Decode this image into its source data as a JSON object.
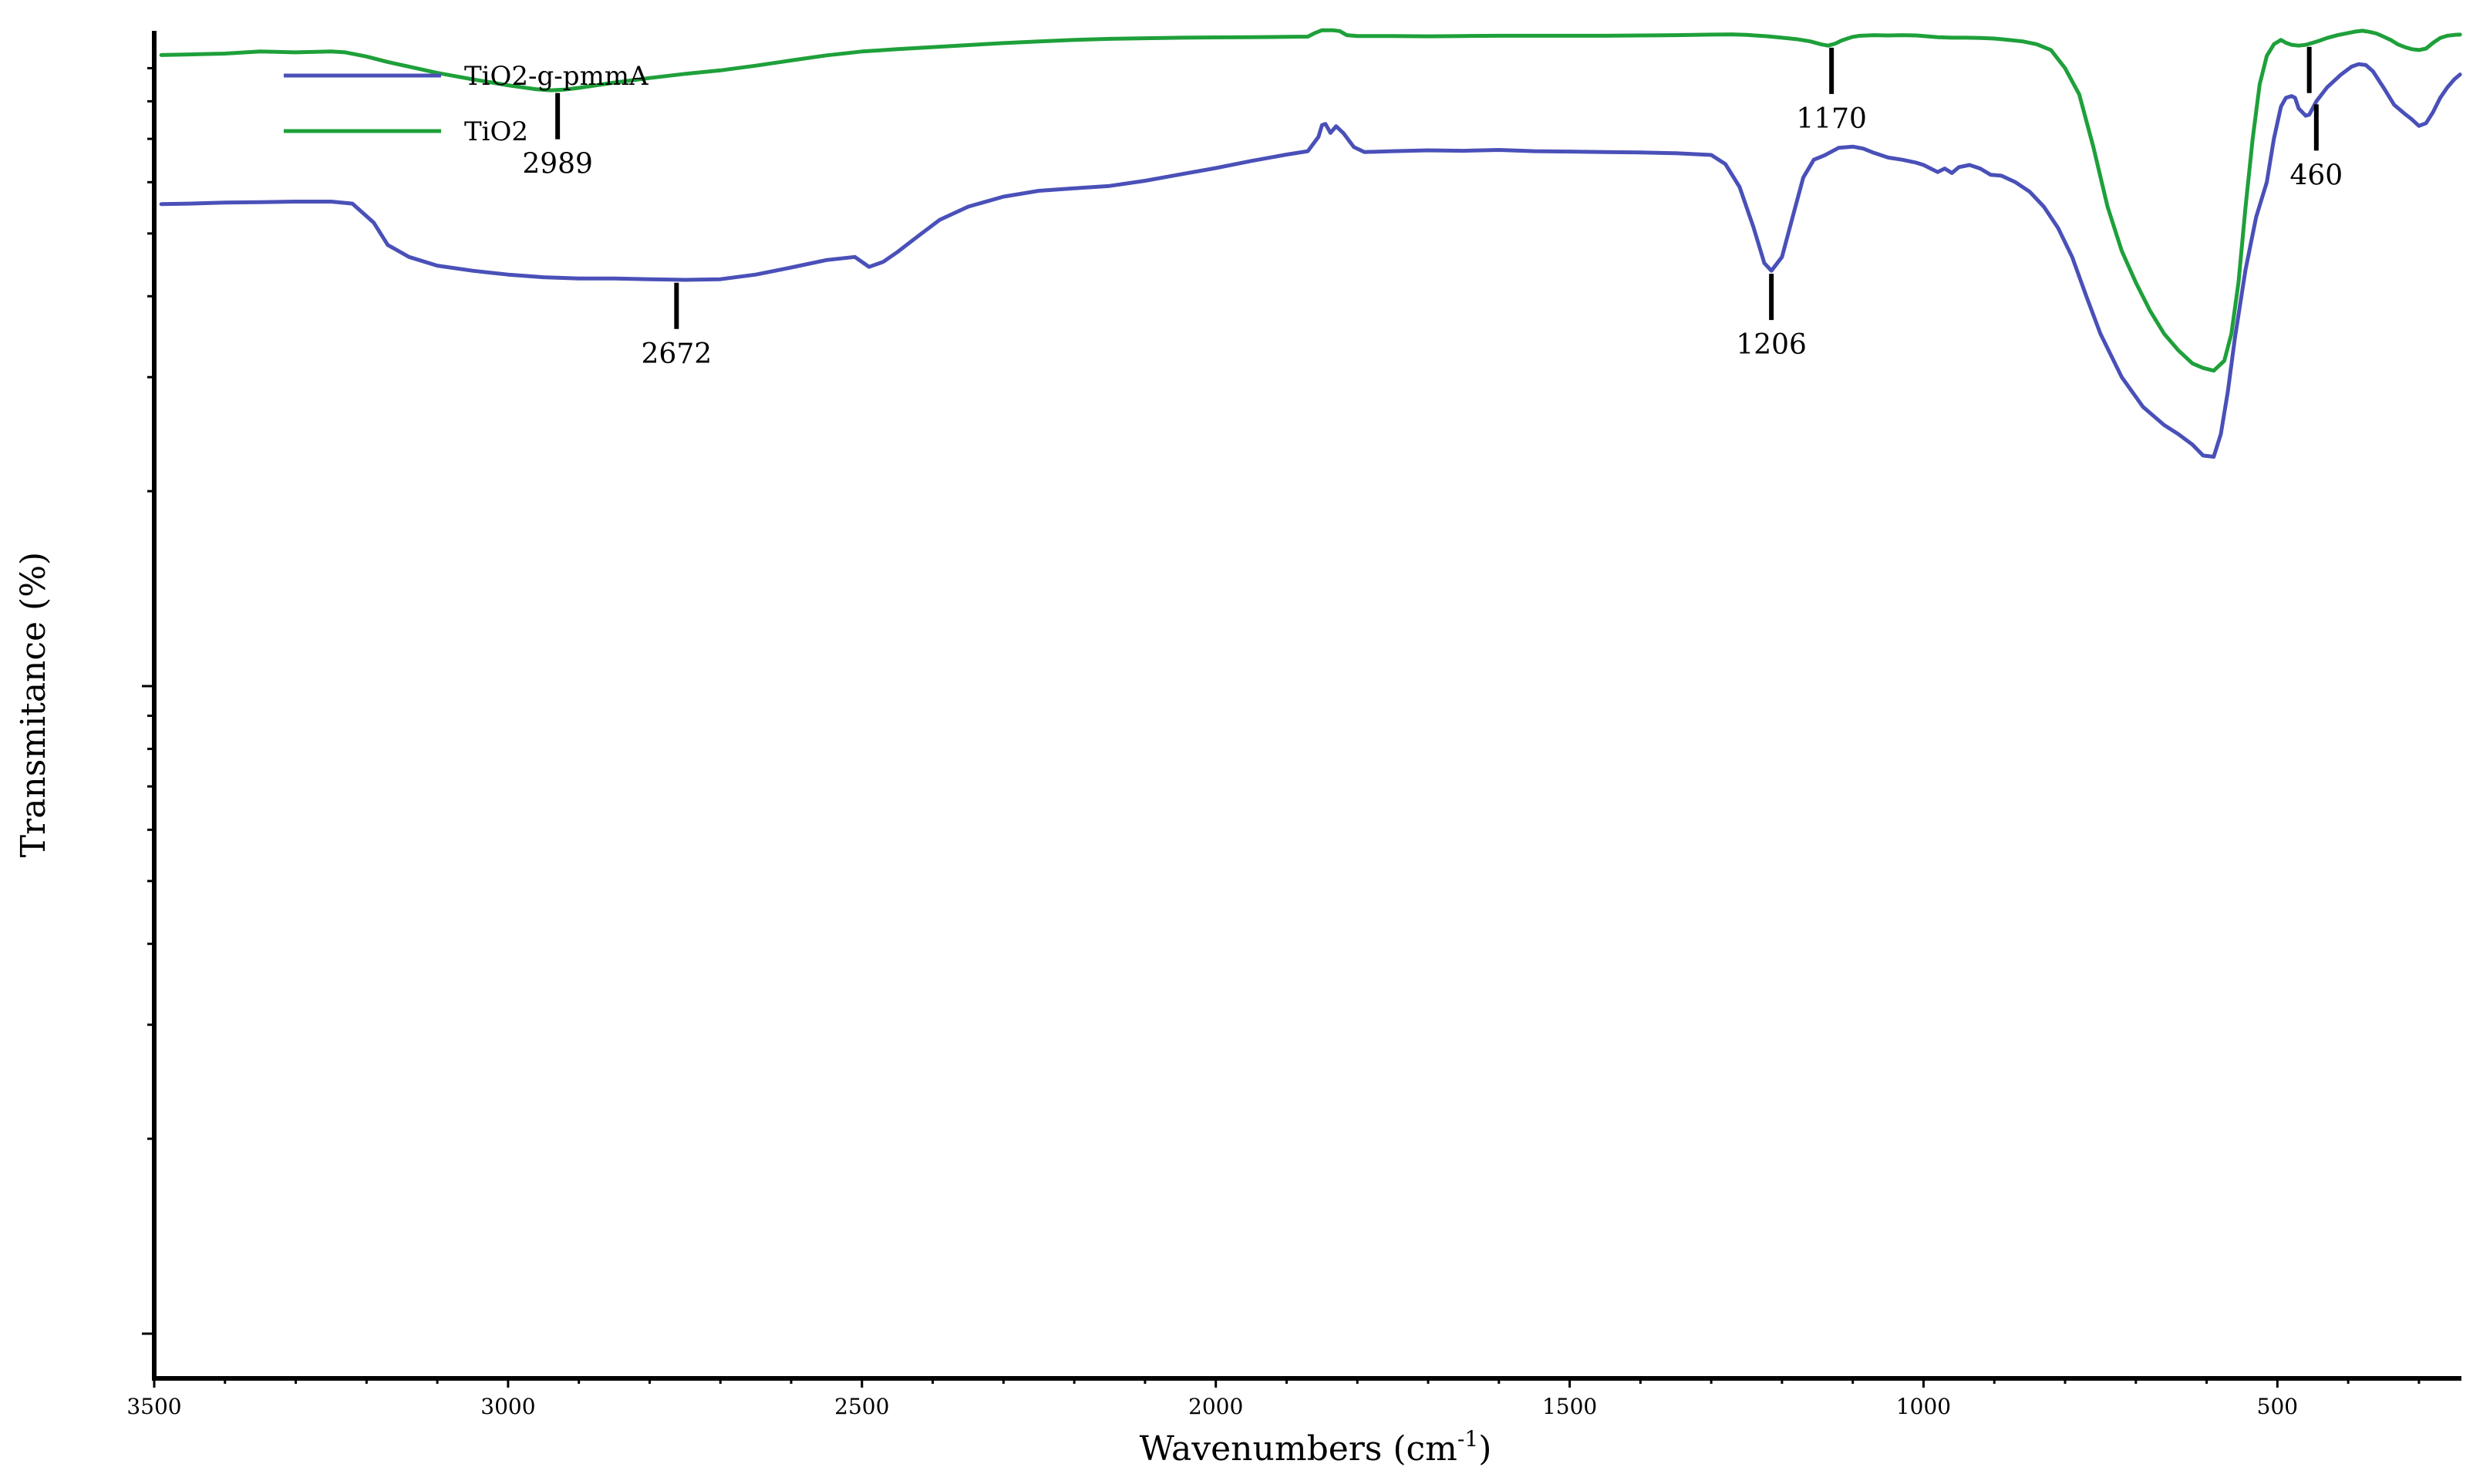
{
  "chart_data": {
    "type": "line",
    "xlabel_text": "Wavenumbers (cm",
    "xlabel_sup": "-1",
    "xlabel_close": ")",
    "ylabel": "Transmitance (%)",
    "xlim": [
      3500,
      240
    ],
    "x_reversed": true,
    "x_ticks": [
      3500,
      3000,
      2500,
      2000,
      1500,
      1000,
      500
    ],
    "x_tick_labels": [
      "3500",
      "3000",
      "2500",
      "2000",
      "1500",
      "1000",
      "500"
    ],
    "y_scale": "log",
    "ylim": [
      1,
      100
    ],
    "y_tick_labels_shown": false,
    "grid": false,
    "legend_position": "top-left",
    "series": [
      {
        "name": "TiO2-g-pmmA",
        "color": "#4a50b8",
        "points": [
          [
            3490,
            55.5
          ],
          [
            3450,
            55.6
          ],
          [
            3400,
            55.8
          ],
          [
            3350,
            55.9
          ],
          [
            3300,
            56.0
          ],
          [
            3250,
            56.0
          ],
          [
            3220,
            55.6
          ],
          [
            3190,
            52.0
          ],
          [
            3170,
            48.0
          ],
          [
            3140,
            46.0
          ],
          [
            3100,
            44.6
          ],
          [
            3050,
            43.8
          ],
          [
            3000,
            43.2
          ],
          [
            2950,
            42.8
          ],
          [
            2900,
            42.6
          ],
          [
            2850,
            42.6
          ],
          [
            2800,
            42.5
          ],
          [
            2750,
            42.4
          ],
          [
            2700,
            42.5
          ],
          [
            2650,
            43.2
          ],
          [
            2600,
            44.3
          ],
          [
            2550,
            45.5
          ],
          [
            2510,
            46.0
          ],
          [
            2490,
            44.4
          ],
          [
            2470,
            45.2
          ],
          [
            2450,
            46.8
          ],
          [
            2420,
            49.6
          ],
          [
            2390,
            52.5
          ],
          [
            2350,
            55.0
          ],
          [
            2300,
            57.0
          ],
          [
            2250,
            58.2
          ],
          [
            2200,
            58.7
          ],
          [
            2150,
            59.2
          ],
          [
            2100,
            60.3
          ],
          [
            2050,
            61.7
          ],
          [
            2000,
            63.1
          ],
          [
            1950,
            64.7
          ],
          [
            1900,
            66.2
          ],
          [
            1870,
            67.0
          ],
          [
            1855,
            70.5
          ],
          [
            1850,
            73.5
          ],
          [
            1845,
            73.8
          ],
          [
            1838,
            71.5
          ],
          [
            1830,
            73.2
          ],
          [
            1820,
            71.5
          ],
          [
            1805,
            68.0
          ],
          [
            1790,
            66.8
          ],
          [
            1750,
            67.0
          ],
          [
            1700,
            67.2
          ],
          [
            1650,
            67.1
          ],
          [
            1600,
            67.3
          ],
          [
            1550,
            67.0
          ],
          [
            1500,
            66.9
          ],
          [
            1450,
            66.8
          ],
          [
            1400,
            66.7
          ],
          [
            1350,
            66.5
          ],
          [
            1300,
            66.1
          ],
          [
            1280,
            64.0
          ],
          [
            1260,
            59.0
          ],
          [
            1240,
            51.0
          ],
          [
            1225,
            45.0
          ],
          [
            1215,
            43.8
          ],
          [
            1200,
            46.0
          ],
          [
            1185,
            53.0
          ],
          [
            1170,
            61.0
          ],
          [
            1155,
            65.0
          ],
          [
            1140,
            66.0
          ],
          [
            1120,
            67.8
          ],
          [
            1100,
            68.1
          ],
          [
            1085,
            67.6
          ],
          [
            1070,
            66.6
          ],
          [
            1050,
            65.5
          ],
          [
            1030,
            65.0
          ],
          [
            1010,
            64.3
          ],
          [
            1000,
            63.8
          ],
          [
            990,
            63.0
          ],
          [
            980,
            62.2
          ],
          [
            970,
            63.0
          ],
          [
            960,
            62.0
          ],
          [
            950,
            63.3
          ],
          [
            935,
            63.8
          ],
          [
            920,
            63.0
          ],
          [
            905,
            61.6
          ],
          [
            890,
            61.4
          ],
          [
            870,
            60.0
          ],
          [
            850,
            58.0
          ],
          [
            830,
            55.0
          ],
          [
            810,
            51.0
          ],
          [
            790,
            46.0
          ],
          [
            770,
            40.0
          ],
          [
            750,
            35.0
          ],
          [
            720,
            30.0
          ],
          [
            690,
            27.0
          ],
          [
            660,
            25.3
          ],
          [
            640,
            24.5
          ],
          [
            620,
            23.6
          ],
          [
            605,
            22.7
          ],
          [
            590,
            22.6
          ],
          [
            580,
            24.5
          ],
          [
            570,
            28.5
          ],
          [
            560,
            34.5
          ],
          [
            545,
            44.0
          ],
          [
            530,
            53.0
          ],
          [
            515,
            60.0
          ],
          [
            505,
            70.0
          ],
          [
            495,
            78.5
          ],
          [
            488,
            81.0
          ],
          [
            480,
            81.5
          ],
          [
            475,
            81.0
          ],
          [
            470,
            78.0
          ],
          [
            460,
            76.0
          ],
          [
            455,
            76.3
          ],
          [
            445,
            80.0
          ],
          [
            430,
            84.0
          ],
          [
            410,
            88.0
          ],
          [
            395,
            90.5
          ],
          [
            385,
            91.3
          ],
          [
            375,
            91.0
          ],
          [
            365,
            89.0
          ],
          [
            350,
            84.0
          ],
          [
            335,
            79.0
          ],
          [
            320,
            76.5
          ],
          [
            310,
            75.0
          ],
          [
            300,
            73.3
          ],
          [
            290,
            74.0
          ],
          [
            280,
            77.0
          ],
          [
            270,
            81.0
          ],
          [
            260,
            84.0
          ],
          [
            250,
            86.5
          ],
          [
            242,
            88.0
          ]
        ]
      },
      {
        "name": "TiO2",
        "color": "#1ea03a",
        "points": [
          [
            3490,
            94.3
          ],
          [
            3450,
            94.5
          ],
          [
            3400,
            94.8
          ],
          [
            3350,
            95.5
          ],
          [
            3300,
            95.2
          ],
          [
            3250,
            95.5
          ],
          [
            3230,
            95.2
          ],
          [
            3200,
            93.8
          ],
          [
            3170,
            92.0
          ],
          [
            3140,
            90.5
          ],
          [
            3100,
            88.5
          ],
          [
            3050,
            86.5
          ],
          [
            3000,
            84.7
          ],
          [
            2960,
            83.5
          ],
          [
            2940,
            83.2
          ],
          [
            2920,
            83.4
          ],
          [
            2900,
            83.9
          ],
          [
            2850,
            85.5
          ],
          [
            2800,
            86.9
          ],
          [
            2750,
            88.2
          ],
          [
            2700,
            89.3
          ],
          [
            2650,
            90.8
          ],
          [
            2600,
            92.5
          ],
          [
            2550,
            94.2
          ],
          [
            2500,
            95.5
          ],
          [
            2450,
            96.3
          ],
          [
            2400,
            97.0
          ],
          [
            2350,
            97.7
          ],
          [
            2300,
            98.4
          ],
          [
            2250,
            99.0
          ],
          [
            2200,
            99.5
          ],
          [
            2150,
            99.9
          ],
          [
            2100,
            100.1
          ],
          [
            2050,
            100.3
          ],
          [
            2000,
            100.4
          ],
          [
            1950,
            100.5
          ],
          [
            1900,
            100.6
          ],
          [
            1870,
            100.7
          ],
          [
            1860,
            102.0
          ],
          [
            1850,
            103.0
          ],
          [
            1835,
            103.0
          ],
          [
            1825,
            102.7
          ],
          [
            1815,
            101.2
          ],
          [
            1800,
            100.9
          ],
          [
            1750,
            100.9
          ],
          [
            1700,
            100.8
          ],
          [
            1650,
            100.9
          ],
          [
            1600,
            101.0
          ],
          [
            1550,
            101.0
          ],
          [
            1500,
            101.0
          ],
          [
            1450,
            101.0
          ],
          [
            1400,
            101.1
          ],
          [
            1350,
            101.2
          ],
          [
            1300,
            101.4
          ],
          [
            1270,
            101.5
          ],
          [
            1250,
            101.3
          ],
          [
            1220,
            100.8
          ],
          [
            1200,
            100.3
          ],
          [
            1180,
            99.8
          ],
          [
            1160,
            99.0
          ],
          [
            1145,
            98.0
          ],
          [
            1135,
            97.5
          ],
          [
            1125,
            98.2
          ],
          [
            1115,
            99.4
          ],
          [
            1100,
            100.6
          ],
          [
            1090,
            101.0
          ],
          [
            1070,
            101.2
          ],
          [
            1050,
            101.1
          ],
          [
            1030,
            101.2
          ],
          [
            1010,
            101.1
          ],
          [
            1000,
            100.9
          ],
          [
            980,
            100.5
          ],
          [
            960,
            100.3
          ],
          [
            940,
            100.3
          ],
          [
            920,
            100.2
          ],
          [
            900,
            100.0
          ],
          [
            880,
            99.5
          ],
          [
            860,
            99.0
          ],
          [
            840,
            98.0
          ],
          [
            820,
            96.0
          ],
          [
            800,
            90.0
          ],
          [
            780,
            82.0
          ],
          [
            760,
            68.0
          ],
          [
            740,
            55.0
          ],
          [
            720,
            47.0
          ],
          [
            700,
            42.0
          ],
          [
            680,
            38.0
          ],
          [
            660,
            35.0
          ],
          [
            640,
            33.0
          ],
          [
            620,
            31.5
          ],
          [
            605,
            31.0
          ],
          [
            590,
            30.7
          ],
          [
            575,
            31.8
          ],
          [
            565,
            35.0
          ],
          [
            555,
            42.0
          ],
          [
            545,
            55.0
          ],
          [
            535,
            70.0
          ],
          [
            525,
            85.0
          ],
          [
            515,
            94.0
          ],
          [
            505,
            98.0
          ],
          [
            495,
            99.5
          ],
          [
            488,
            98.5
          ],
          [
            480,
            97.8
          ],
          [
            470,
            97.5
          ],
          [
            460,
            97.8
          ],
          [
            450,
            98.5
          ],
          [
            440,
            99.3
          ],
          [
            430,
            100.2
          ],
          [
            415,
            101.2
          ],
          [
            400,
            102.0
          ],
          [
            390,
            102.5
          ],
          [
            380,
            102.8
          ],
          [
            370,
            102.4
          ],
          [
            360,
            101.8
          ],
          [
            350,
            100.7
          ],
          [
            340,
            99.5
          ],
          [
            330,
            98.0
          ],
          [
            320,
            97.0
          ],
          [
            310,
            96.3
          ],
          [
            300,
            96.0
          ],
          [
            290,
            96.5
          ],
          [
            280,
            98.5
          ],
          [
            270,
            100.2
          ],
          [
            260,
            101.0
          ],
          [
            250,
            101.3
          ],
          [
            242,
            101.4
          ]
        ]
      }
    ],
    "peak_labels": [
      {
        "x": 2930,
        "series": "TiO2",
        "label": "2989"
      },
      {
        "x": 1130,
        "series": "TiO2",
        "label": "1170"
      },
      {
        "x": 455,
        "series": "TiO2",
        "label": ""
      },
      {
        "x": 2762,
        "series": "TiO2-g-pmmA",
        "label": "2672"
      },
      {
        "x": 1215,
        "series": "TiO2-g-pmmA",
        "label": "1206"
      },
      {
        "x": 445,
        "series": "TiO2-g-pmmA",
        "label": "460"
      }
    ]
  }
}
